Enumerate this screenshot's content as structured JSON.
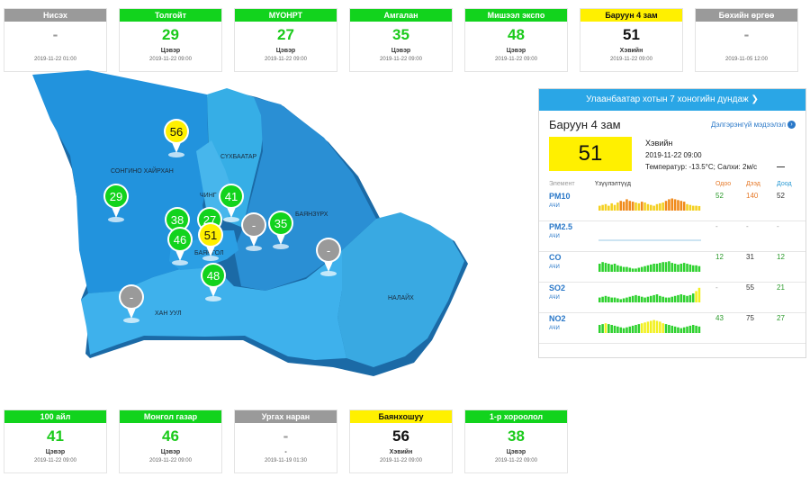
{
  "top_cards": [
    {
      "name": "Нисэх",
      "value": "-",
      "status": "",
      "time": "2019-11-22 01:00",
      "color": "gray"
    },
    {
      "name": "Толгойт",
      "value": "29",
      "status": "Цэвэр",
      "time": "2019-11-22 09:00",
      "color": "green"
    },
    {
      "name": "МҮОНРТ",
      "value": "27",
      "status": "Цэвэр",
      "time": "2019-11-22 09:00",
      "color": "green"
    },
    {
      "name": "Амгалан",
      "value": "35",
      "status": "Цэвэр",
      "time": "2019-11-22 09:00",
      "color": "green"
    },
    {
      "name": "Мишээл экспо",
      "value": "48",
      "status": "Цэвэр",
      "time": "2019-11-22 09:00",
      "color": "green"
    },
    {
      "name": "Баруун 4 зам",
      "value": "51",
      "status": "Хэвийн",
      "time": "2019-11-22 09:00",
      "color": "yellow"
    },
    {
      "name": "Бөхийн өргөө",
      "value": "-",
      "status": "",
      "time": "2019-11-05 12:00",
      "color": "gray"
    }
  ],
  "bottom_cards": [
    {
      "name": "100 айл",
      "value": "41",
      "status": "Цэвэр",
      "time": "2019-11-22 09:00",
      "color": "green"
    },
    {
      "name": "Монгол газар",
      "value": "46",
      "status": "Цэвэр",
      "time": "2019-11-22 09:00",
      "color": "green"
    },
    {
      "name": "Ургах наран",
      "value": "-",
      "status": "-",
      "time": "2019-11-19 01:30",
      "color": "gray"
    },
    {
      "name": "Баянхошуу",
      "value": "56",
      "status": "Хэвийн",
      "time": "2019-11-22 09:00",
      "color": "yellow"
    },
    {
      "name": "1-р хороолол",
      "value": "38",
      "status": "Цэвэр",
      "time": "2019-11-22 09:00",
      "color": "green"
    }
  ],
  "map": {
    "districts": [
      "СОНГИНО ХАЙРХАН",
      "СҮХБААТАР",
      "ЧИНГ",
      "БАЯНЗҮРХ",
      "БАЯНГОЛ",
      "ХАН УУЛ",
      "НАЛАЙХ"
    ],
    "markers": [
      {
        "value": "56",
        "color": "yellow"
      },
      {
        "value": "29",
        "color": "green"
      },
      {
        "value": "41",
        "color": "green"
      },
      {
        "value": "38",
        "color": "green"
      },
      {
        "value": "27",
        "color": "green"
      },
      {
        "value": "-",
        "color": "gray"
      },
      {
        "value": "35",
        "color": "green"
      },
      {
        "value": "46",
        "color": "green"
      },
      {
        "value": "51",
        "color": "yellow"
      },
      {
        "value": "-",
        "color": "gray"
      },
      {
        "value": "48",
        "color": "green"
      },
      {
        "value": "-",
        "color": "gray"
      }
    ]
  },
  "panel": {
    "header": "Улаанбаатар хотын 7 хоногийн дундаж",
    "station": "Баруун 4 зам",
    "more_label": "Дэлгэрэнгүй мэдээлэл",
    "aqi": "51",
    "status": "Хэвийн",
    "time": "2019-11-22 09:00",
    "weather": "Температур: -13.5°C; Салхи: 2м/с",
    "col_element": "Элемент",
    "col_trend": "Үзүүлэлтүүд",
    "col_now": "Одоо",
    "col_max": "Дээд",
    "col_min": "Доод",
    "pollutants": [
      {
        "name": "PM10",
        "unit": "АЧИ",
        "now": "52",
        "max": "140",
        "min": "52",
        "bar_color": "mix_orange",
        "bars": [
          0.3,
          0.35,
          0.4,
          0.3,
          0.45,
          0.35,
          0.5,
          0.6,
          0.55,
          0.7,
          0.6,
          0.55,
          0.5,
          0.45,
          0.55,
          0.5,
          0.4,
          0.35,
          0.3,
          0.4,
          0.45,
          0.5,
          0.6,
          0.7,
          0.75,
          0.7,
          0.65,
          0.6,
          0.55,
          0.4,
          0.35,
          0.3,
          0.3,
          0.28
        ]
      },
      {
        "name": "PM2.5",
        "unit": "АЧИ",
        "now": "-",
        "max": "-",
        "min": "-",
        "bar_color": "none",
        "bars": []
      },
      {
        "name": "CO",
        "unit": "АЧИ",
        "now": "12",
        "max": "31",
        "min": "12",
        "bar_color": "green",
        "bars": [
          0.5,
          0.6,
          0.55,
          0.5,
          0.45,
          0.5,
          0.4,
          0.35,
          0.3,
          0.3,
          0.25,
          0.2,
          0.2,
          0.25,
          0.3,
          0.35,
          0.4,
          0.45,
          0.5,
          0.5,
          0.55,
          0.6,
          0.6,
          0.65,
          0.55,
          0.5,
          0.45,
          0.5,
          0.55,
          0.5,
          0.45,
          0.4,
          0.4,
          0.35
        ]
      },
      {
        "name": "SO2",
        "unit": "АЧИ",
        "now": "-",
        "max": "55",
        "min": "21",
        "bar_color": "green_tail",
        "bars": [
          0.3,
          0.35,
          0.4,
          0.35,
          0.3,
          0.3,
          0.25,
          0.2,
          0.25,
          0.3,
          0.35,
          0.4,
          0.45,
          0.4,
          0.35,
          0.3,
          0.35,
          0.4,
          0.45,
          0.5,
          0.4,
          0.35,
          0.3,
          0.3,
          0.35,
          0.4,
          0.45,
          0.5,
          0.45,
          0.4,
          0.45,
          0.55,
          0.7,
          0.9
        ]
      },
      {
        "name": "NO2",
        "unit": "АЧИ",
        "now": "43",
        "max": "75",
        "min": "27",
        "bar_color": "mix_yellow",
        "bars": [
          0.5,
          0.55,
          0.6,
          0.55,
          0.5,
          0.45,
          0.4,
          0.35,
          0.3,
          0.35,
          0.4,
          0.45,
          0.5,
          0.55,
          0.6,
          0.65,
          0.7,
          0.75,
          0.8,
          0.75,
          0.7,
          0.6,
          0.55,
          0.5,
          0.45,
          0.4,
          0.35,
          0.3,
          0.35,
          0.4,
          0.45,
          0.5,
          0.45,
          0.4
        ]
      }
    ]
  },
  "colors": {
    "green": "#12d31d",
    "yellow": "#fff000",
    "gray": "#9a9a9a",
    "accent": "#2aa6e6",
    "link": "#2a78c8",
    "now": "#2a9a2a",
    "max": "#e67a2a",
    "min": "#2a9a2a"
  }
}
